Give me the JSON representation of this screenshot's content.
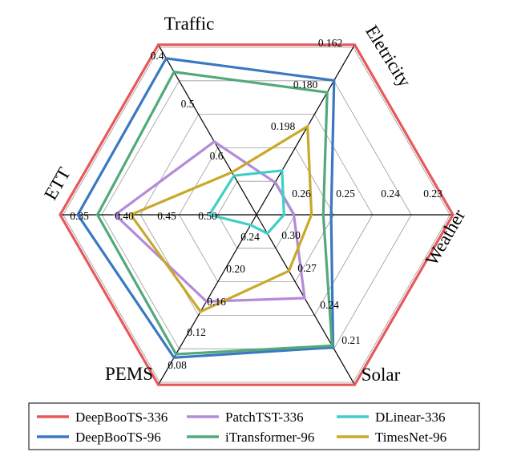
{
  "chart_data": {
    "type": "radar",
    "title": "",
    "axes": [
      {
        "name": "Traffic",
        "ticks": [
          "0.4",
          "0.5",
          "0.6"
        ]
      },
      {
        "name": "Eletricity",
        "ticks": [
          "0.162",
          "0.180",
          "0.198"
        ]
      },
      {
        "name": "Weather",
        "ticks": [
          "0.23",
          "0.24",
          "0.25",
          "0.26"
        ]
      },
      {
        "name": "Solar",
        "ticks": [
          "0.21",
          "0.24",
          "0.27",
          "0.30"
        ]
      },
      {
        "name": "PEMS",
        "ticks": [
          "0.08",
          "0.12",
          "0.16",
          "0.20",
          "0.24"
        ]
      },
      {
        "name": "ETT",
        "ticks": [
          "0.35",
          "0.40",
          "0.45",
          "0.50"
        ]
      }
    ],
    "grid_levels": 5,
    "value_note": "values are normalized radial fractions (1 = outer ring, 0 = center)",
    "series": [
      {
        "name": "DeepBooTS-336",
        "color": "#e8585a",
        "values": [
          1.0,
          1.0,
          1.0,
          1.0,
          1.0,
          1.0
        ]
      },
      {
        "name": "DeepBooTS-96",
        "color": "#3a78c2",
        "values": [
          0.92,
          0.79,
          0.38,
          0.78,
          0.84,
          0.91
        ]
      },
      {
        "name": "iTransformer-96",
        "color": "#52a97a",
        "values": [
          0.84,
          0.72,
          0.34,
          0.77,
          0.82,
          0.81
        ]
      },
      {
        "name": "PatchTST-336",
        "color": "#b38bd9",
        "values": [
          0.43,
          0.19,
          0.19,
          0.49,
          0.51,
          0.72
        ]
      },
      {
        "name": "TimesNet-96",
        "color": "#c9a82a",
        "values": [
          0.25,
          0.52,
          0.28,
          0.33,
          0.57,
          0.64
        ]
      },
      {
        "name": "DLinear-336",
        "color": "#3fcfc6",
        "values": [
          0.23,
          0.26,
          0.14,
          0.11,
          0.06,
          0.24
        ]
      }
    ],
    "legend_position": "bottom",
    "legend_order": [
      "DeepBooTS-336",
      "PatchTST-336",
      "DLinear-336",
      "DeepBooTS-96",
      "iTransformer-96",
      "TimesNet-96"
    ]
  }
}
